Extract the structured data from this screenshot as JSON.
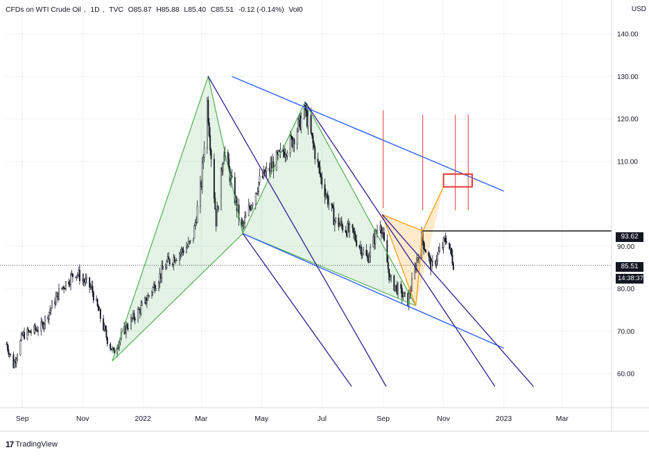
{
  "header": {
    "symbol": "CFDs on WTI Crude Oil",
    "interval": "1D",
    "source": "TVC",
    "open": "O85.87",
    "high": "H85.88",
    "low": "L85.40",
    "close": "C85.51",
    "change": "-0.12 (-0.14%)",
    "volume": "Vol0"
  },
  "currency": "USD",
  "branding": {
    "logo_text": "TradingView"
  },
  "price_tags": {
    "last_price": "85.51",
    "countdown": "14:38:37",
    "level": "93.62"
  },
  "colors": {
    "up": "#26a69a",
    "candle": "#131722",
    "green_pattern": "#4caf50",
    "orange_pattern": "#ff9800",
    "channel_blue": "#2962ff",
    "fib_navy": "#311b92",
    "red_marks": "#e53935"
  },
  "chart_data": {
    "type": "candlestick",
    "price_axis": {
      "range": [
        52,
        148
      ],
      "ticks": [
        "60.00",
        "70.00",
        "80.00",
        "90.00",
        "110.00",
        "120.00",
        "130.00",
        "140.00"
      ]
    },
    "time_axis": {
      "range": [
        "2021-08-15",
        "2023-04-20"
      ],
      "ticks": [
        {
          "label": "Sep",
          "date": "2021-09-01"
        },
        {
          "label": "Nov",
          "date": "2021-11-01"
        },
        {
          "label": "2022",
          "date": "2022-01-01"
        },
        {
          "label": "Mar",
          "date": "2022-03-01"
        },
        {
          "label": "May",
          "date": "2022-05-01"
        },
        {
          "label": "Jul",
          "date": "2022-07-01"
        },
        {
          "label": "Sep",
          "date": "2022-09-01"
        },
        {
          "label": "Nov",
          "date": "2022-11-01"
        },
        {
          "label": "2023",
          "date": "2023-01-01"
        },
        {
          "label": "Mar",
          "date": "2023-03-01"
        }
      ]
    },
    "price_path": [
      [
        "2021-08-16",
        67
      ],
      [
        "2021-08-23",
        62
      ],
      [
        "2021-09-01",
        69
      ],
      [
        "2021-09-20",
        71
      ],
      [
        "2021-10-10",
        80
      ],
      [
        "2021-10-25",
        84
      ],
      [
        "2021-11-10",
        80
      ],
      [
        "2021-11-26",
        68
      ],
      [
        "2021-12-02",
        65
      ],
      [
        "2021-12-15",
        71
      ],
      [
        "2022-01-01",
        76
      ],
      [
        "2022-01-25",
        86
      ],
      [
        "2022-02-20",
        91
      ],
      [
        "2022-03-01",
        105
      ],
      [
        "2022-03-07",
        124
      ],
      [
        "2022-03-16",
        96
      ],
      [
        "2022-03-24",
        113
      ],
      [
        "2022-04-11",
        94
      ],
      [
        "2022-04-28",
        105
      ],
      [
        "2022-05-15",
        110
      ],
      [
        "2022-06-01",
        115
      ],
      [
        "2022-06-14",
        122
      ],
      [
        "2022-06-30",
        106
      ],
      [
        "2022-07-14",
        96
      ],
      [
        "2022-08-01",
        93
      ],
      [
        "2022-08-16",
        87
      ],
      [
        "2022-08-29",
        96
      ],
      [
        "2022-09-08",
        82
      ],
      [
        "2022-09-26",
        77
      ],
      [
        "2022-10-10",
        92
      ],
      [
        "2022-10-20",
        85
      ],
      [
        "2022-11-04",
        92
      ],
      [
        "2022-11-11",
        86
      ]
    ],
    "last_price": 85.51,
    "horizontal_level": 93.62,
    "drawings": {
      "green_pattern": [
        [
          "2021-12-01",
          63
        ],
        [
          "2022-03-08",
          130
        ],
        [
          "2022-04-12",
          93
        ],
        [
          "2022-06-14",
          124
        ],
        [
          "2022-10-04",
          76
        ]
      ],
      "orange_pattern": [
        [
          "2022-08-31",
          97.5
        ],
        [
          "2022-10-04",
          76
        ],
        [
          "2022-10-11",
          93.6
        ],
        [
          "2022-11-01",
          104
        ]
      ],
      "channel_upper": [
        [
          "2022-04-01",
          130
        ],
        [
          "2023-01-01",
          103
        ]
      ],
      "channel_lower": [
        [
          "2022-04-12",
          93
        ],
        [
          "2023-01-01",
          66
        ]
      ],
      "fib_rays": [
        {
          "from": [
            "2022-03-08",
            130
          ],
          "to": [
            "2022-09-04",
            57
          ]
        },
        {
          "from": [
            "2022-06-14",
            124
          ],
          "to": [
            "2022-12-23",
            57
          ]
        },
        {
          "from": [
            "2022-04-12",
            93
          ],
          "to": [
            "2022-07-31",
            57
          ]
        },
        {
          "from": [
            "2022-08-31",
            97.5
          ],
          "to": [
            "2023-01-31",
            57
          ]
        }
      ],
      "red_verticals": [
        {
          "date": "2022-09-01",
          "top": 122,
          "bottom": 99
        },
        {
          "date": "2022-10-11",
          "top": 121,
          "bottom": 98.5
        },
        {
          "date": "2022-11-13",
          "top": 121,
          "bottom": 98.5
        },
        {
          "date": "2022-11-26",
          "top": 121,
          "bottom": 98.5
        }
      ],
      "red_box": {
        "from": "2022-11-01",
        "to": "2022-11-30",
        "top": 107,
        "bottom": 104
      }
    }
  }
}
